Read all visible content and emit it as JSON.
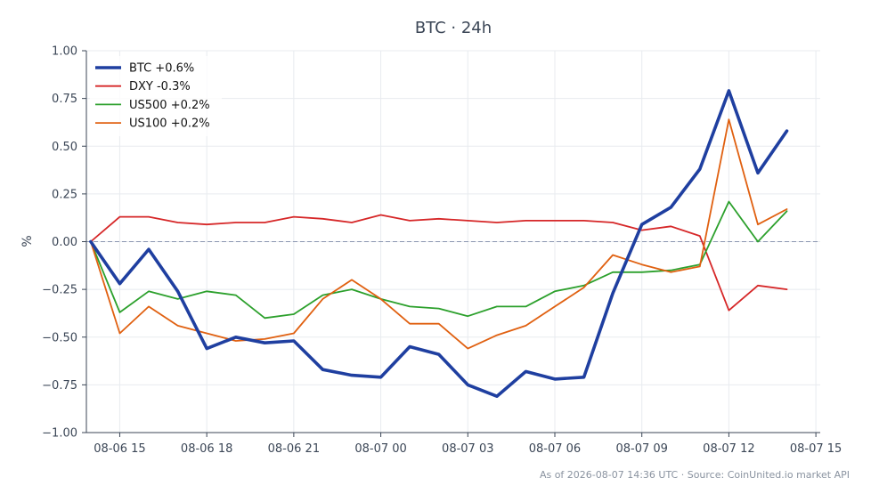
{
  "chart_data": {
    "type": "line",
    "title": "BTC · 24h",
    "xlabel": "",
    "ylabel": "%",
    "ylim": [
      -1.0,
      1.0
    ],
    "y_ticks": [
      "−1.00",
      "−0.75",
      "−0.50",
      "−0.25",
      "0.00",
      "0.25",
      "0.50",
      "0.75",
      "1.00"
    ],
    "y_tick_values": [
      -1.0,
      -0.75,
      -0.5,
      -0.25,
      0.0,
      0.25,
      0.5,
      0.75,
      1.0
    ],
    "x_ticks": [
      "08-06 15",
      "08-06 18",
      "08-06 21",
      "08-07 00",
      "08-07 03",
      "08-07 06",
      "08-07 09",
      "08-07 12",
      "08-07 15"
    ],
    "x_tick_hours": [
      15,
      18,
      21,
      24,
      27,
      30,
      33,
      36,
      39
    ],
    "xlim_hours": [
      13.85,
      39.15
    ],
    "grid": true,
    "zero_line": true,
    "legend_position": "top-left",
    "x_hours": [
      14,
      15,
      16,
      17,
      18,
      19,
      20,
      21,
      22,
      23,
      24,
      25,
      26,
      27,
      28,
      29,
      30,
      31,
      32,
      33,
      34,
      35,
      36,
      37,
      38
    ],
    "series": [
      {
        "name": "BTC +0.6%",
        "color": "#1f3fa0",
        "emphasis": true,
        "values": [
          0.0,
          -0.22,
          -0.04,
          -0.26,
          -0.56,
          -0.5,
          -0.53,
          -0.52,
          -0.67,
          -0.7,
          -0.71,
          -0.55,
          -0.59,
          -0.75,
          -0.81,
          -0.68,
          -0.72,
          -0.71,
          -0.27,
          0.09,
          0.18,
          0.38,
          0.79,
          0.36,
          0.58
        ]
      },
      {
        "name": "DXY -0.3%",
        "color": "#d62728",
        "emphasis": false,
        "values": [
          0.0,
          0.13,
          0.13,
          0.1,
          0.09,
          0.1,
          0.1,
          0.13,
          0.12,
          0.1,
          0.14,
          0.11,
          0.12,
          0.11,
          0.1,
          0.11,
          0.11,
          0.11,
          0.1,
          0.06,
          0.08,
          0.03,
          -0.36,
          -0.23,
          -0.25
        ]
      },
      {
        "name": "US500 +0.2%",
        "color": "#2ca02c",
        "emphasis": false,
        "values": [
          0.0,
          -0.37,
          -0.26,
          -0.3,
          -0.26,
          -0.28,
          -0.4,
          -0.38,
          -0.28,
          -0.25,
          -0.3,
          -0.34,
          -0.35,
          -0.39,
          -0.34,
          -0.34,
          -0.26,
          -0.23,
          -0.16,
          -0.16,
          -0.15,
          -0.12,
          0.21,
          0.0,
          0.16
        ]
      },
      {
        "name": "US100 +0.2%",
        "color": "#e06010",
        "emphasis": false,
        "values": [
          0.0,
          -0.48,
          -0.34,
          -0.44,
          -0.48,
          -0.52,
          -0.51,
          -0.48,
          -0.3,
          -0.2,
          -0.3,
          -0.43,
          -0.43,
          -0.56,
          -0.49,
          -0.44,
          -0.34,
          -0.24,
          -0.07,
          -0.12,
          -0.16,
          -0.13,
          0.64,
          0.09,
          0.17
        ]
      }
    ],
    "footer": "As of 2026-08-07 14:36 UTC · Source: CoinUnited.io market API"
  }
}
